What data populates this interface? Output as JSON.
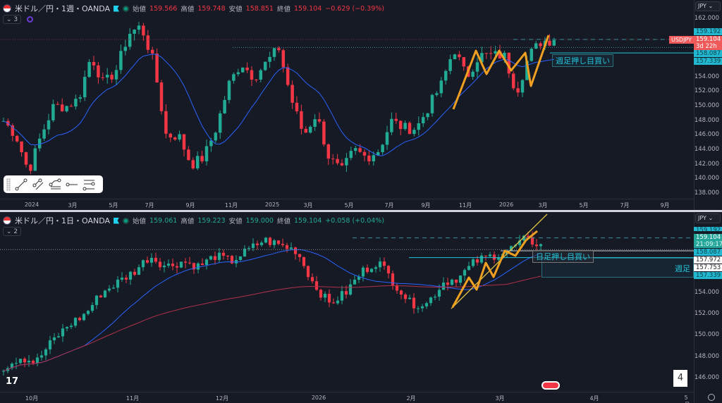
{
  "top": {
    "symbol": "米ドル／円・1週・OANDA",
    "labels": {
      "open": "始値",
      "high": "高値",
      "low": "安値",
      "close": "終値"
    },
    "open": "159.566",
    "high": "159.748",
    "low": "158.851",
    "close": "159.104",
    "change": "−0.629 (−0.39%)",
    "indicator_count": "3",
    "currency": "JPY",
    "price_ticks": [
      "162.000",
      "154.000",
      "152.000",
      "150.000",
      "148.000",
      "146.000",
      "144.000",
      "142.000",
      "140.000",
      "138.000"
    ],
    "tags": {
      "line1": "159.192",
      "last": "159.104",
      "countdown": "3d 22h",
      "line2": "158.087",
      "line3": "157.339",
      "symbol": "USDJPY"
    },
    "time_ticks": [
      "2024",
      "3月",
      "5月",
      "7月",
      "9月",
      "11月",
      "2025",
      "3月",
      "5月",
      "7月",
      "9月",
      "11月",
      "2026",
      "3月",
      "5月",
      "7月",
      "9月"
    ],
    "annotation": "週足押し目買い",
    "price_path": [
      148,
      146,
      141,
      146,
      150,
      150,
      151,
      157,
      153,
      155,
      160,
      161,
      156,
      146,
      146,
      142,
      143,
      147,
      153,
      156,
      154,
      156,
      158,
      151,
      146,
      149,
      143,
      141,
      144,
      143,
      144,
      148,
      147,
      147,
      150,
      153,
      158,
      154,
      157,
      157,
      157,
      152,
      157,
      159,
      159.1
    ],
    "drawing_tools": [
      "trend-line",
      "parallel-channel",
      "pitchfork",
      "horizontal-ray",
      "fib-levels"
    ]
  },
  "bottom": {
    "symbol": "米ドル／円・1日・OANDA",
    "labels": {
      "open": "始値",
      "high": "高値",
      "low": "安値",
      "close": "終値"
    },
    "open": "159.061",
    "high": "159.223",
    "low": "159.000",
    "close": "159.104",
    "change": "+0.058 (+0.04%)",
    "indicator_count": "2",
    "currency": "JPY",
    "price_ticks": [
      "154.000",
      "152.000",
      "150.000",
      "148.000",
      "146.000"
    ],
    "tags": {
      "line1": "159.192",
      "last": "159.104",
      "countdown": "21:09:17",
      "line2": "158.087",
      "line3": "157.972",
      "line4": "157.753",
      "line5": "157.339"
    },
    "time_ticks": [
      "10月",
      "11月",
      "12月",
      "2026",
      "2月",
      "3月",
      "4月",
      "5月"
    ],
    "annotation_daily": "日足押し目買い",
    "annotation_weekly": "週足",
    "price_path": [
      147,
      148,
      147.5,
      149.5,
      151,
      152,
      154,
      155,
      156,
      157.5,
      156.5,
      157,
      156.5,
      157.5,
      157,
      158,
      159,
      158.5,
      158,
      155,
      153,
      154,
      156,
      157,
      155,
      153,
      153,
      155,
      155.5,
      157,
      157.5,
      158,
      159,
      158.6
    ],
    "page_badge": "4"
  },
  "colors": {
    "up": "#22ab94",
    "down": "#f23645",
    "ma_fast": "#2962ff",
    "ma_slow": "#b2314a",
    "zigzag": "#f0a020",
    "trend": "#e0c040",
    "level": "#22c3d8"
  }
}
